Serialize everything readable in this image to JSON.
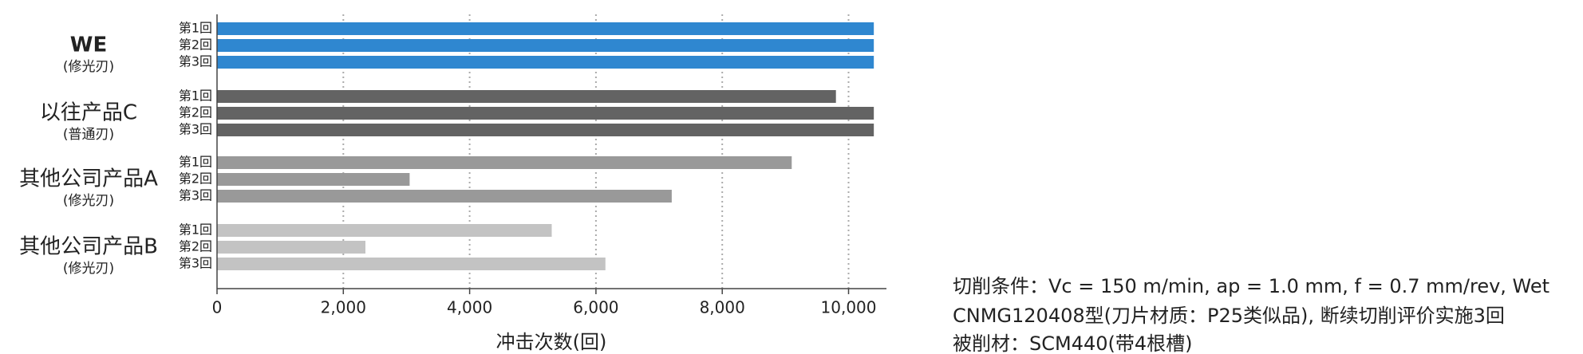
{
  "chart_data": {
    "type": "bar",
    "orientation": "horizontal",
    "xlabel": "冲击次数(回)",
    "xlim": [
      0,
      10600
    ],
    "xticks": [
      0,
      {
        "value": 2000,
        "label": "2,000"
      },
      {
        "value": 4000,
        "label": "4,000"
      },
      {
        "value": 6000,
        "label": "6,000"
      },
      {
        "value": 8000,
        "label": "8,000"
      },
      {
        "value": 10000,
        "label": "10,000"
      }
    ],
    "grid": true,
    "groups": [
      {
        "name": "WE",
        "note": "(修光刃)",
        "color": "#2f87d0",
        "labels": [
          "第1回",
          "第2回",
          "第3回"
        ],
        "values": [
          10400,
          10400,
          10400
        ]
      },
      {
        "name": "以往产品C",
        "note": "(普通刃)",
        "color": "#636363",
        "labels": [
          "第1回",
          "第2回",
          "第3回"
        ],
        "values": [
          9800,
          10400,
          10400
        ]
      },
      {
        "name": "其他公司产品A",
        "note": "(修光刃)",
        "color": "#999999",
        "labels": [
          "第1回",
          "第2回",
          "第3回"
        ],
        "values": [
          9100,
          3050,
          7200
        ]
      },
      {
        "name": "其他公司产品B",
        "note": "(修光刃)",
        "color": "#c3c3c3",
        "labels": [
          "第1回",
          "第2回",
          "第3回"
        ],
        "values": [
          5300,
          2350,
          6150
        ]
      }
    ]
  },
  "notes": [
    "切削条件：Vc = 150 m/min,  ap = 1.0 mm,  f = 0.7 mm/rev,  Wet",
    "CNMG120408型(刀片材质：P25类似品), 断续切削评价实施3回",
    "被削材：SCM440(带4根槽)"
  ]
}
